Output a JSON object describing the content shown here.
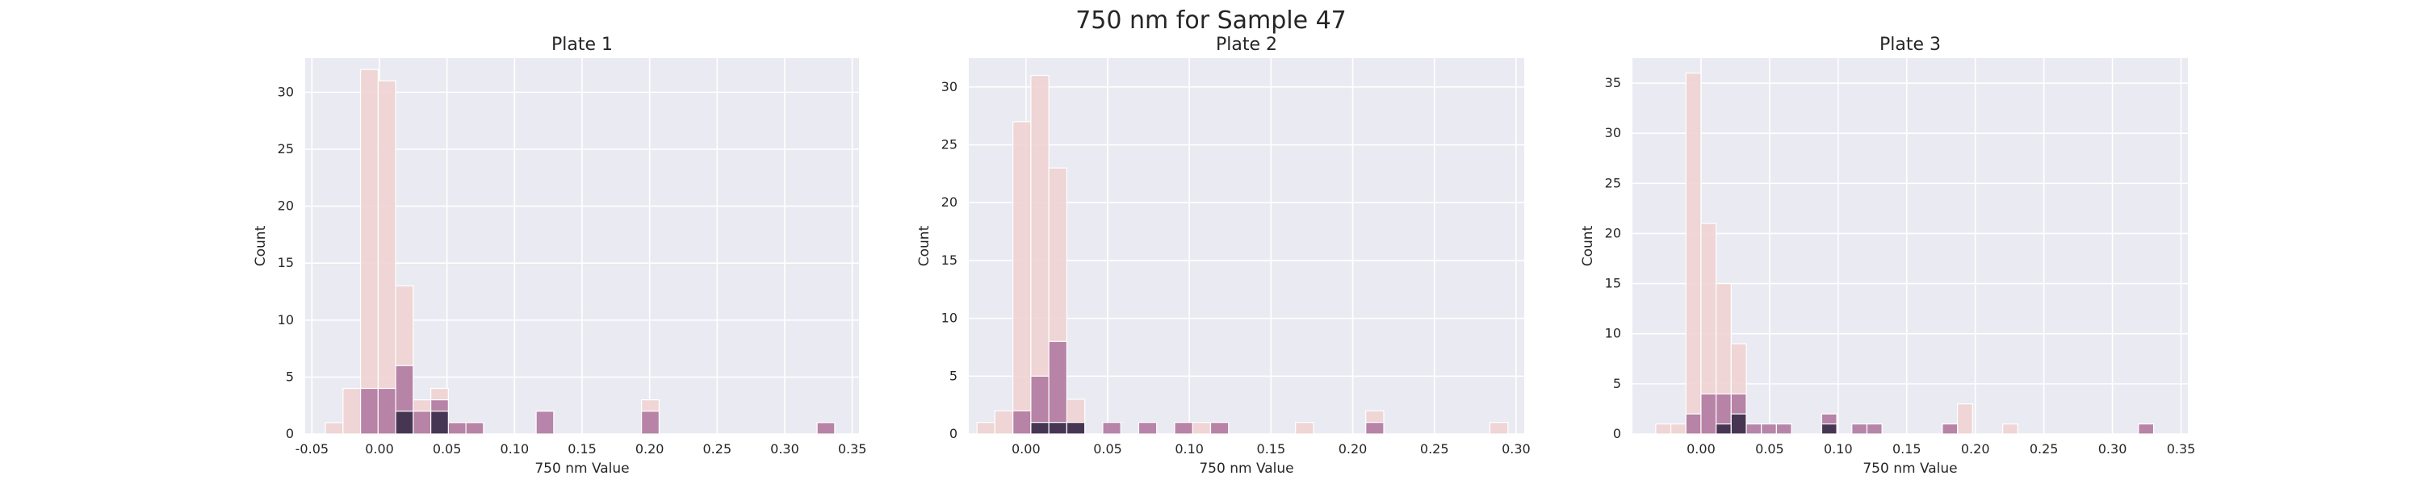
{
  "figure": {
    "title": "750 nm for Sample 47"
  },
  "colors": {
    "background": "#eaeaf2",
    "grid": "#ffffff",
    "light": "#f0d3d1",
    "mid": "#b07aa1",
    "dark": "#3b2d4a"
  },
  "chart_data": [
    {
      "type": "histogram",
      "title": "Plate 1",
      "xlabel": "750 nm Value",
      "ylabel": "Count",
      "xlim": [
        -0.055,
        0.355
      ],
      "ylim": [
        0,
        33
      ],
      "xticks": [
        "-0.05",
        "0.00",
        "0.05",
        "0.10",
        "0.15",
        "0.20",
        "0.25",
        "0.30",
        "0.35"
      ],
      "yticks": [
        "0",
        "5",
        "10",
        "15",
        "20",
        "25",
        "30"
      ],
      "bins": [
        {
          "x0": -0.04,
          "x1": -0.027,
          "light": 1,
          "mid": 0,
          "dark": 0
        },
        {
          "x0": -0.027,
          "x1": -0.014,
          "light": 4,
          "mid": 0,
          "dark": 0
        },
        {
          "x0": -0.014,
          "x1": -0.001,
          "light": 32,
          "mid": 4,
          "dark": 0
        },
        {
          "x0": -0.001,
          "x1": 0.012,
          "light": 31,
          "mid": 4,
          "dark": 0
        },
        {
          "x0": 0.012,
          "x1": 0.025,
          "light": 13,
          "mid": 6,
          "dark": 2
        },
        {
          "x0": 0.025,
          "x1": 0.038,
          "light": 3,
          "mid": 2,
          "dark": 0
        },
        {
          "x0": 0.038,
          "x1": 0.051,
          "light": 4,
          "mid": 3,
          "dark": 2
        },
        {
          "x0": 0.051,
          "x1": 0.064,
          "light": 1,
          "mid": 1,
          "dark": 0
        },
        {
          "x0": 0.064,
          "x1": 0.077,
          "light": 1,
          "mid": 1,
          "dark": 0
        },
        {
          "x0": 0.116,
          "x1": 0.129,
          "light": 0,
          "mid": 2,
          "dark": 0
        },
        {
          "x0": 0.194,
          "x1": 0.207,
          "light": 3,
          "mid": 2,
          "dark": 0
        },
        {
          "x0": 0.324,
          "x1": 0.337,
          "light": 1,
          "mid": 1,
          "dark": 0
        }
      ]
    },
    {
      "type": "histogram",
      "title": "Plate 2",
      "xlabel": "750 nm Value",
      "ylabel": "Count",
      "xlim": [
        -0.035,
        0.305
      ],
      "ylim": [
        0,
        32.5
      ],
      "xticks": [
        "0.00",
        "0.05",
        "0.10",
        "0.15",
        "0.20",
        "0.25",
        "0.30"
      ],
      "yticks": [
        "0",
        "5",
        "10",
        "15",
        "20",
        "25",
        "30"
      ],
      "bins": [
        {
          "x0": -0.03,
          "x1": -0.019,
          "light": 1,
          "mid": 0,
          "dark": 0
        },
        {
          "x0": -0.019,
          "x1": -0.008,
          "light": 2,
          "mid": 0,
          "dark": 0
        },
        {
          "x0": -0.008,
          "x1": 0.003,
          "light": 27,
          "mid": 2,
          "dark": 0
        },
        {
          "x0": 0.003,
          "x1": 0.014,
          "light": 31,
          "mid": 5,
          "dark": 1
        },
        {
          "x0": 0.014,
          "x1": 0.025,
          "light": 23,
          "mid": 8,
          "dark": 1
        },
        {
          "x0": 0.025,
          "x1": 0.036,
          "light": 3,
          "mid": 1,
          "dark": 1
        },
        {
          "x0": 0.047,
          "x1": 0.058,
          "light": 0,
          "mid": 1,
          "dark": 0
        },
        {
          "x0": 0.069,
          "x1": 0.08,
          "light": 0,
          "mid": 1,
          "dark": 0
        },
        {
          "x0": 0.091,
          "x1": 0.102,
          "light": 1,
          "mid": 1,
          "dark": 0
        },
        {
          "x0": 0.102,
          "x1": 0.113,
          "light": 1,
          "mid": 0,
          "dark": 0
        },
        {
          "x0": 0.113,
          "x1": 0.124,
          "light": 1,
          "mid": 1,
          "dark": 0
        },
        {
          "x0": 0.165,
          "x1": 0.176,
          "light": 1,
          "mid": 0,
          "dark": 0
        },
        {
          "x0": 0.208,
          "x1": 0.219,
          "light": 2,
          "mid": 1,
          "dark": 0
        },
        {
          "x0": 0.284,
          "x1": 0.295,
          "light": 1,
          "mid": 0,
          "dark": 0
        }
      ]
    },
    {
      "type": "histogram",
      "title": "Plate 3",
      "xlabel": "750 nm Value",
      "ylabel": "Count",
      "xlim": [
        -0.05,
        0.355
      ],
      "ylim": [
        0,
        37.5
      ],
      "xticks": [
        "0.00",
        "0.05",
        "0.10",
        "0.15",
        "0.20",
        "0.25",
        "0.30",
        "0.35"
      ],
      "yticks": [
        "0",
        "5",
        "10",
        "15",
        "20",
        "25",
        "30",
        "35"
      ],
      "bins": [
        {
          "x0": -0.033,
          "x1": -0.022,
          "light": 1,
          "mid": 0,
          "dark": 0
        },
        {
          "x0": -0.022,
          "x1": -0.011,
          "light": 1,
          "mid": 0,
          "dark": 0
        },
        {
          "x0": -0.011,
          "x1": 0.0,
          "light": 36,
          "mid": 2,
          "dark": 0
        },
        {
          "x0": 0.0,
          "x1": 0.011,
          "light": 21,
          "mid": 4,
          "dark": 0
        },
        {
          "x0": 0.011,
          "x1": 0.022,
          "light": 15,
          "mid": 4,
          "dark": 1
        },
        {
          "x0": 0.022,
          "x1": 0.033,
          "light": 9,
          "mid": 4,
          "dark": 2
        },
        {
          "x0": 0.033,
          "x1": 0.044,
          "light": 0,
          "mid": 1,
          "dark": 0
        },
        {
          "x0": 0.044,
          "x1": 0.055,
          "light": 0,
          "mid": 1,
          "dark": 0
        },
        {
          "x0": 0.055,
          "x1": 0.066,
          "light": 0,
          "mid": 1,
          "dark": 0
        },
        {
          "x0": 0.088,
          "x1": 0.099,
          "light": 2,
          "mid": 2,
          "dark": 1
        },
        {
          "x0": 0.11,
          "x1": 0.121,
          "light": 0,
          "mid": 1,
          "dark": 0
        },
        {
          "x0": 0.121,
          "x1": 0.132,
          "light": 0,
          "mid": 1,
          "dark": 0
        },
        {
          "x0": 0.176,
          "x1": 0.187,
          "light": 1,
          "mid": 1,
          "dark": 0
        },
        {
          "x0": 0.187,
          "x1": 0.198,
          "light": 3,
          "mid": 0,
          "dark": 0
        },
        {
          "x0": 0.22,
          "x1": 0.231,
          "light": 1,
          "mid": 0,
          "dark": 0
        },
        {
          "x0": 0.319,
          "x1": 0.33,
          "light": 1,
          "mid": 1,
          "dark": 0
        }
      ]
    }
  ]
}
